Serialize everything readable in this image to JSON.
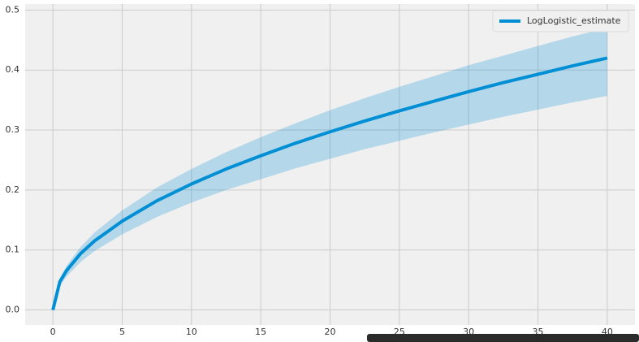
{
  "chart_data": {
    "type": "line",
    "x": [
      0,
      0.5,
      1,
      2,
      3,
      5,
      7.5,
      10,
      12.5,
      15,
      17.5,
      20,
      22.5,
      25,
      27.5,
      30,
      32.5,
      35,
      37.5,
      40
    ],
    "series": [
      {
        "name": "LogLogistic_estimate",
        "color": "#008fd5",
        "values": [
          0,
          0.047,
          0.066,
          0.094,
          0.115,
          0.148,
          0.182,
          0.21,
          0.235,
          0.257,
          0.278,
          0.297,
          0.315,
          0.332,
          0.348,
          0.364,
          0.379,
          0.393,
          0.407,
          0.42
        ],
        "lower": [
          0,
          0.04,
          0.056,
          0.08,
          0.098,
          0.126,
          0.155,
          0.179,
          0.2,
          0.218,
          0.236,
          0.252,
          0.268,
          0.282,
          0.296,
          0.309,
          0.322,
          0.334,
          0.346,
          0.357
        ],
        "upper": [
          0,
          0.053,
          0.074,
          0.105,
          0.129,
          0.166,
          0.204,
          0.235,
          0.263,
          0.288,
          0.311,
          0.333,
          0.353,
          0.372,
          0.39,
          0.408,
          0.424,
          0.44,
          0.456,
          0.47
        ],
        "band_color": "#008fd5"
      }
    ],
    "xlim": [
      -2,
      42
    ],
    "xticks": [
      0,
      5,
      10,
      15,
      20,
      25,
      30,
      35,
      40
    ],
    "ylim": [
      -0.025,
      0.51
    ],
    "yticks": [
      {
        "value": 0,
        "label": "0.0"
      },
      0.1,
      0.2,
      0.3,
      0.4,
      0.5
    ],
    "grid": true,
    "legend": "upper right"
  }
}
